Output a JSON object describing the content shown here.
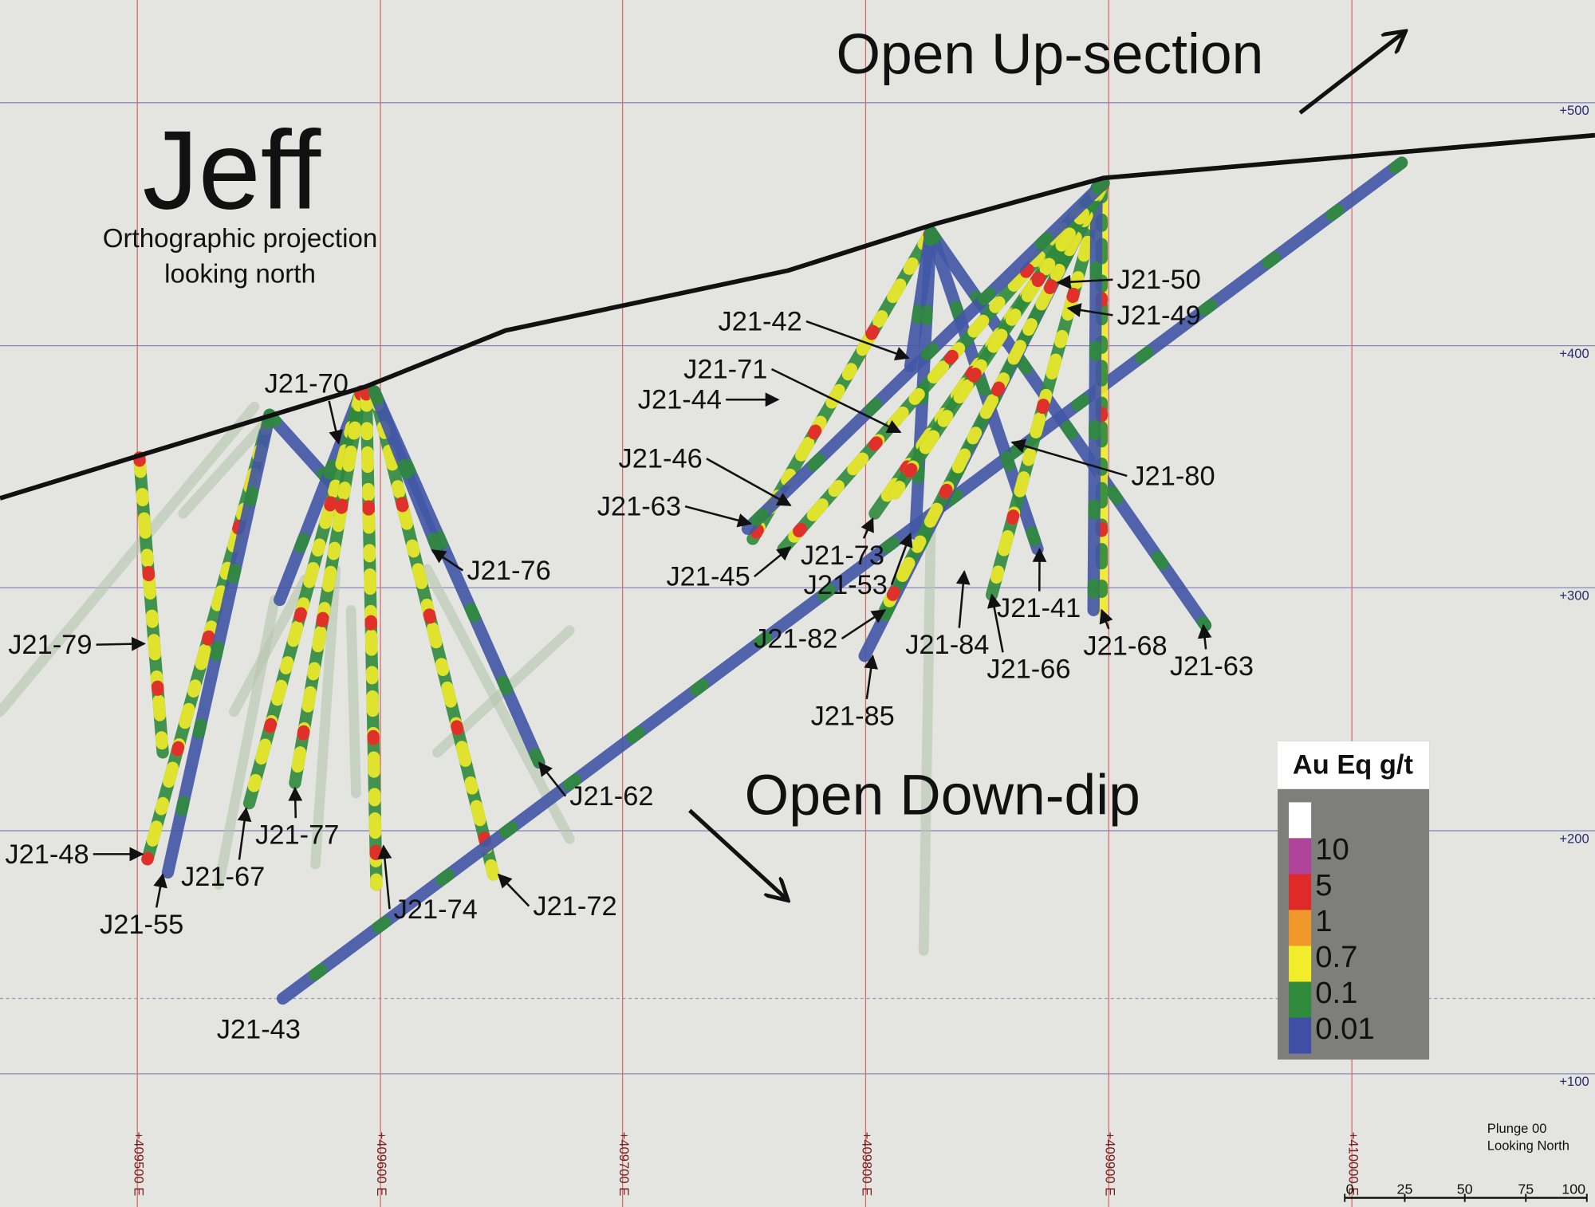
{
  "title": "Jeff",
  "subtitle": [
    "Orthographic projection",
    "looking north"
  ],
  "annotations": [
    "Open Up-section",
    "Open Down-dip"
  ],
  "hole_labels": [
    "J21-70",
    "J21-42",
    "J21-71",
    "J21-44",
    "J21-46",
    "J21-63",
    "J21-45",
    "J21-73",
    "J21-53",
    "J21-50",
    "J21-49",
    "J21-80",
    "J21-76",
    "J21-79",
    "J21-82",
    "J21-84",
    "J21-66",
    "J21-41",
    "J21-68",
    "J21-63",
    "J21-85",
    "J21-62",
    "J21-77",
    "J21-48",
    "J21-67",
    "J21-55",
    "J21-74",
    "J21-72",
    "J21-43"
  ],
  "legend": {
    "title": "Au Eq g/t",
    "entries": [
      "10",
      "5",
      "1",
      "0.7",
      "0.1",
      "0.01"
    ]
  },
  "elevations": [
    "+500",
    "+400",
    "+300",
    "+200",
    "+100"
  ],
  "eastings": [
    "+409500 E",
    "+409600 E",
    "+409700 E",
    "+409800 E",
    "+409900 E",
    "+410000 E"
  ],
  "view": [
    "Plunge 00",
    "Looking North"
  ],
  "scale": [
    "0",
    "25",
    "50",
    "75",
    "100"
  ]
}
